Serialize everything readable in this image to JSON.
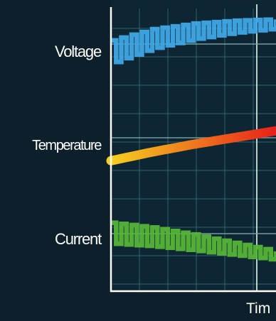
{
  "chart_data": {
    "type": "line",
    "title": "",
    "xlabel": "Tim",
    "ylabel": "",
    "grid": true,
    "legend": "none",
    "series": [
      {
        "name": "Voltage",
        "color": "#3fa6e6",
        "style": "square-wave",
        "band": [
          0.67,
          1.0
        ],
        "x": [
          0,
          0.25,
          0.5,
          0.75,
          1.0
        ],
        "values": [
          0.52,
          0.66,
          0.74,
          0.79,
          0.82
        ],
        "amplitude": [
          0.25,
          0.21,
          0.17,
          0.13,
          0.1
        ]
      },
      {
        "name": "Temperature",
        "color_start": "#f5d020",
        "color_end": "#e8201a",
        "style": "ramp",
        "band": [
          0.33,
          0.67
        ],
        "x": [
          0,
          0.25,
          0.5,
          0.75,
          1.0
        ],
        "values": [
          0.38,
          0.47,
          0.55,
          0.62,
          0.69
        ]
      },
      {
        "name": "Current",
        "color": "#55b437",
        "style": "square-wave",
        "band": [
          0.0,
          0.33
        ],
        "x": [
          0,
          0.25,
          0.5,
          0.75,
          1.0
        ],
        "values": [
          0.62,
          0.58,
          0.52,
          0.45,
          0.38
        ],
        "amplitude": [
          0.22,
          0.2,
          0.17,
          0.13,
          0.09
        ]
      }
    ]
  }
}
